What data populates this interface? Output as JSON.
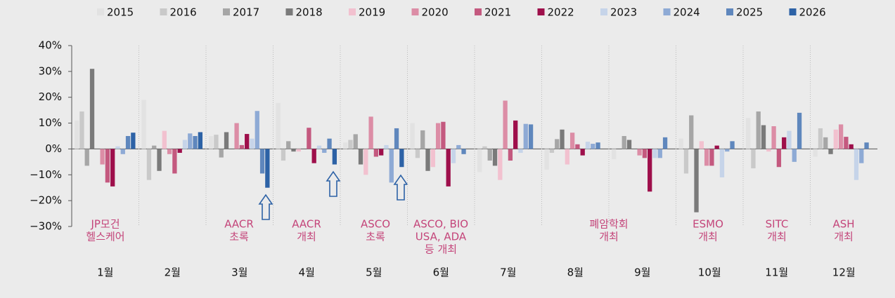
{
  "chart_data": {
    "type": "bar",
    "categories": [
      "1월",
      "2월",
      "3월",
      "4월",
      "5월",
      "6월",
      "7월",
      "8월",
      "9월",
      "10월",
      "11월",
      "12월"
    ],
    "series": [
      {
        "name": "2015",
        "color": "#e2e2e2",
        "values": [
          11,
          19,
          5,
          17.8,
          2.5,
          10,
          -9,
          -8,
          -4,
          4,
          12,
          -3
        ]
      },
      {
        "name": "2016",
        "color": "#c9c9c9",
        "values": [
          14.5,
          -12,
          5.5,
          -4.5,
          3.5,
          -3.5,
          1,
          -1.5,
          0,
          -9.5,
          -7.5,
          8
        ]
      },
      {
        "name": "2017",
        "color": "#a6a6a6",
        "values": [
          -6.5,
          1.3,
          -3.3,
          3,
          5.7,
          7.2,
          -4.5,
          3.8,
          5,
          13,
          14.5,
          4.5
        ]
      },
      {
        "name": "2018",
        "color": "#7a7a7a",
        "values": [
          31,
          -8.5,
          6.5,
          -1,
          -6,
          -8.5,
          -6.5,
          7.5,
          3.5,
          -24.5,
          9.2,
          -2
        ]
      },
      {
        "name": "2019",
        "color": "#f2c1cf",
        "values": [
          0,
          7,
          0,
          -1,
          -10,
          -7,
          -12,
          -6,
          0,
          3,
          -1,
          7.5
        ]
      },
      {
        "name": "2020",
        "color": "#dc8da6",
        "values": [
          -6,
          -2,
          10,
          0,
          12.5,
          10,
          18.7,
          6.3,
          -2.5,
          -6.5,
          8.8,
          9.5
        ]
      },
      {
        "name": "2021",
        "color": "#c4597f",
        "values": [
          -13,
          -9.5,
          1.5,
          8.2,
          -3,
          10.5,
          -4.5,
          1.8,
          -3.5,
          -6.5,
          -7,
          4.7
        ]
      },
      {
        "name": "2022",
        "color": "#9e0f4b",
        "values": [
          -14.5,
          -1.5,
          5.8,
          -5.5,
          -2.5,
          -14.5,
          11,
          -2.5,
          -16.5,
          1.3,
          4.5,
          1.8
        ]
      },
      {
        "name": "2023",
        "color": "#c6d4e9",
        "values": [
          1,
          3.5,
          4,
          1.3,
          1.5,
          -5.5,
          -1.5,
          2.8,
          -3.5,
          -11,
          7,
          -12
        ]
      },
      {
        "name": "2024",
        "color": "#8eaad5",
        "values": [
          -2,
          6,
          14.7,
          -1.5,
          -13,
          1.5,
          9.7,
          2,
          -3.5,
          -1,
          -5,
          -5.5
        ]
      },
      {
        "name": "2025",
        "color": "#5f87bd",
        "values": [
          5,
          5,
          -9.5,
          4,
          8,
          -2,
          9.5,
          2.5,
          4.5,
          3,
          14,
          2.5
        ]
      },
      {
        "name": "2026",
        "color": "#2d62a6",
        "values": [
          6.3,
          6.5,
          -15,
          -6,
          -7,
          null,
          null,
          null,
          null,
          null,
          null,
          null
        ]
      }
    ],
    "ylim": [
      -30,
      40
    ],
    "yticks": [
      {
        "value": -30,
        "label": "−30%"
      },
      {
        "value": -20,
        "label": "−20%"
      },
      {
        "value": -10,
        "label": "−10%"
      },
      {
        "value": 0,
        "label": "0%"
      },
      {
        "value": 10,
        "label": "10%"
      },
      {
        "value": 20,
        "label": "20%"
      },
      {
        "value": 30,
        "label": "30%"
      },
      {
        "value": 40,
        "label": "40%"
      }
    ],
    "annotations": [
      [
        "JP모건",
        "헬스케어"
      ],
      [
        "AACR",
        "초록"
      ],
      [
        "AACR",
        "개최"
      ],
      [
        "ASCO",
        "초록"
      ],
      [
        "ASCO, BIO",
        "USA, ADA",
        "등 개최"
      ],
      [
        "폐암학회",
        "개최"
      ],
      [
        "ESMO",
        "개최"
      ],
      [
        "SITC",
        "개최"
      ],
      [
        "ASH",
        "개최"
      ]
    ]
  }
}
